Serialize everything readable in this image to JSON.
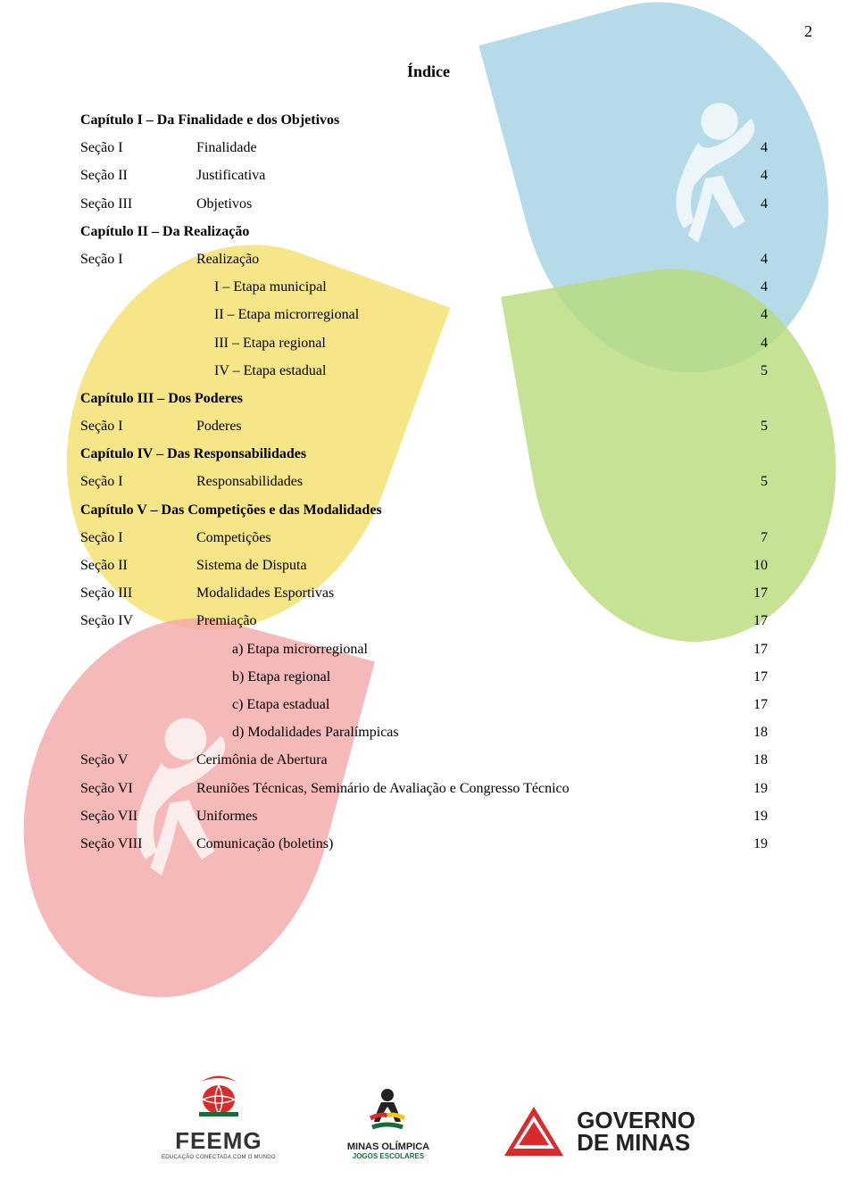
{
  "page_number": "2",
  "title": "Índice",
  "toc": [
    {
      "type": "chapter",
      "label": "",
      "title": "Capítulo I – Da Finalidade e dos Objetivos",
      "page": ""
    },
    {
      "type": "section",
      "label": "Seção I",
      "title": "Finalidade",
      "page": "4"
    },
    {
      "type": "section",
      "label": "Seção II",
      "title": "Justificativa",
      "page": "4"
    },
    {
      "type": "section",
      "label": "Seção III",
      "title": "Objetivos",
      "page": "4"
    },
    {
      "type": "chapter",
      "label": "",
      "title": "Capítulo II – Da Realização",
      "page": ""
    },
    {
      "type": "section",
      "label": "Seção I",
      "title": "Realização",
      "page": "4"
    },
    {
      "type": "sub",
      "label": "",
      "title": "I – Etapa municipal",
      "page": "4"
    },
    {
      "type": "sub",
      "label": "",
      "title": "II – Etapa microrregional",
      "page": "4"
    },
    {
      "type": "sub",
      "label": "",
      "title": "III – Etapa regional",
      "page": "4"
    },
    {
      "type": "sub",
      "label": "",
      "title": "IV – Etapa estadual",
      "page": "5"
    },
    {
      "type": "chapter",
      "label": "",
      "title": "Capítulo III – Dos Poderes",
      "page": ""
    },
    {
      "type": "section",
      "label": "Seção I",
      "title": "Poderes",
      "page": "5"
    },
    {
      "type": "chapter",
      "label": "",
      "title": "Capítulo IV – Das Responsabilidades",
      "page": ""
    },
    {
      "type": "section",
      "label": "Seção I",
      "title": "Responsabilidades",
      "page": "5"
    },
    {
      "type": "chapter",
      "label": "",
      "title": "Capítulo V – Das Competições e das Modalidades",
      "page": ""
    },
    {
      "type": "section",
      "label": "Seção I",
      "title": "Competições",
      "page": "7"
    },
    {
      "type": "section",
      "label": "Seção II",
      "title": "Sistema de Disputa",
      "page": "10"
    },
    {
      "type": "section",
      "label": "Seção III",
      "title": "Modalidades Esportivas",
      "page": "17"
    },
    {
      "type": "section",
      "label": "Seção IV",
      "title": "Premiação",
      "page": "17"
    },
    {
      "type": "subletter",
      "label": "",
      "title": "a)  Etapa microrregional",
      "page": "17"
    },
    {
      "type": "subletter",
      "label": "",
      "title": "b)  Etapa regional",
      "page": "17"
    },
    {
      "type": "subletter",
      "label": "",
      "title": "c)  Etapa estadual",
      "page": "17"
    },
    {
      "type": "subletter",
      "label": "",
      "title": "d)  Modalidades Paralímpicas",
      "page": "18"
    },
    {
      "type": "section",
      "label": "Seção V",
      "title": "Cerimônia de Abertura",
      "page": "18"
    },
    {
      "type": "section",
      "label": "Seção VI",
      "title": "Reuniões Técnicas, Seminário de Avaliação e Congresso Técnico",
      "page": "19"
    },
    {
      "type": "section",
      "label": "Seção VII",
      "title": "Uniformes",
      "page": "19"
    },
    {
      "type": "section",
      "label": "Seção VIII",
      "title": "Comunicação (boletins)",
      "page": "19"
    }
  ],
  "footer": {
    "feemg": {
      "name": "FEEMG",
      "sub": "EDUCAÇÃO CONECTADA COM O MUNDO"
    },
    "minas": {
      "name": "MINAS OLÍMPICA",
      "sub": "JOGOS ESCOLARES"
    },
    "governo": {
      "line1": "GOVERNO",
      "line2": "DE MINAS"
    }
  },
  "colors": {
    "leaf_blue": "#a8d5e5",
    "leaf_yellow": "#f5e06a",
    "leaf_green": "#b8dc7a",
    "leaf_red": "#f4a8a8",
    "text": "#000000",
    "background": "#ffffff"
  }
}
